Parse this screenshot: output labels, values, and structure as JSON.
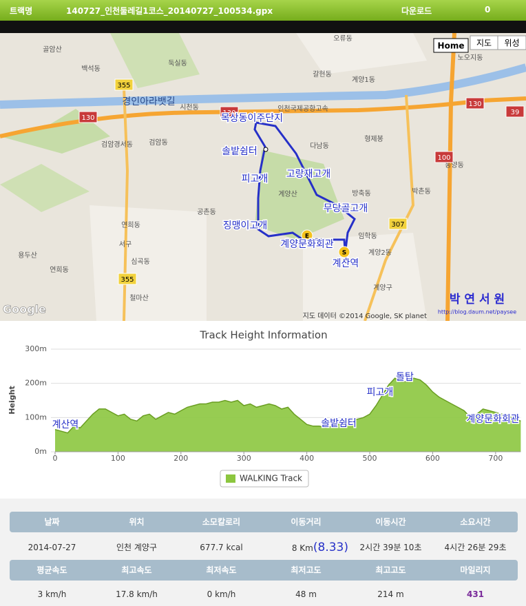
{
  "header": {
    "track_label": "트랙명",
    "track_name": "140727_인천둘레길1코스_20140727_100534.gpx",
    "download_label": "다운로드",
    "download_count": "0"
  },
  "map": {
    "buttons": [
      "Home",
      "지도",
      "위성"
    ],
    "route_labels": [
      "목상동이주단지",
      "솔밭쉼터",
      "고랑재고개",
      "피고개",
      "무당골고개",
      "징맹이고개",
      "계양문화회관",
      "계산역"
    ],
    "places": [
      "골암산",
      "백석동",
      "둑실동",
      "오류동",
      "갈현동",
      "계양1동",
      "노오지동",
      "시천동",
      "경인아라뱃길",
      "인천국제공항고속",
      "다남동",
      "형제봉",
      "검암경서동",
      "검암동",
      "계양산",
      "방축동",
      "박촌동",
      "동양동",
      "공촌동",
      "연희동",
      "서구",
      "임학동",
      "계양2동",
      "계양구",
      "용두산",
      "연희동",
      "심곡동",
      "철마산"
    ],
    "road_numbers": [
      "355",
      "130",
      "130",
      "307",
      "355",
      "130",
      "39",
      "100"
    ],
    "logo": "Google",
    "attribution": "지도 데이터 ©2014 Google, SK planet",
    "watermark": "박 연 서 원",
    "watermark_url": "http://blog.daum.net/paysee"
  },
  "chart_data": {
    "type": "area",
    "title": "Track Height Information",
    "y_label": "Height",
    "x": [
      0,
      10,
      20,
      30,
      40,
      50,
      60,
      70,
      80,
      90,
      100,
      110,
      120,
      130,
      140,
      150,
      160,
      170,
      180,
      190,
      200,
      210,
      220,
      230,
      240,
      250,
      260,
      270,
      280,
      290,
      300,
      310,
      320,
      330,
      340,
      350,
      360,
      370,
      380,
      390,
      400,
      410,
      420,
      430,
      440,
      450,
      460,
      470,
      480,
      490,
      500,
      510,
      520,
      530,
      540,
      550,
      560,
      570,
      580,
      590,
      600,
      610,
      620,
      630,
      640,
      650,
      660,
      670,
      680,
      690,
      700,
      710,
      720,
      730,
      740
    ],
    "series": [
      {
        "name": "WALKING Track",
        "color": "#8cc63f",
        "values": [
          65,
          60,
          55,
          75,
          70,
          90,
          110,
          125,
          125,
          115,
          105,
          110,
          95,
          90,
          105,
          110,
          95,
          105,
          115,
          110,
          120,
          130,
          135,
          140,
          140,
          145,
          145,
          150,
          145,
          150,
          135,
          140,
          130,
          135,
          140,
          135,
          125,
          130,
          110,
          95,
          80,
          75,
          75,
          70,
          75,
          80,
          85,
          90,
          95,
          100,
          110,
          135,
          165,
          195,
          215,
          205,
          205,
          215,
          210,
          195,
          175,
          160,
          150,
          140,
          130,
          120,
          100,
          110,
          125,
          120,
          115,
          110,
          105,
          95,
          90
        ]
      }
    ],
    "xlim": [
      0,
      740
    ],
    "ylim": [
      0,
      300
    ],
    "xticks": [
      0,
      100,
      200,
      300,
      400,
      500,
      600,
      700
    ],
    "yticks": [
      {
        "value": 0,
        "label": "0m"
      },
      {
        "value": 100,
        "label": "100m"
      },
      {
        "value": 200,
        "label": "200m"
      },
      {
        "value": 300,
        "label": "300m"
      }
    ],
    "annotations": [
      "계산역",
      "솔밭쉼터",
      "피고개",
      "돌탑",
      "계양문화회관"
    ]
  },
  "table": {
    "rows": [
      {
        "headers": [
          "날짜",
          "위치",
          "소모칼로리",
          "이동거리",
          "이동시간",
          "소요시간"
        ],
        "values": [
          "2014-07-27",
          "인천 계양구",
          "677.7 kcal",
          "8 Km",
          "2시간 39분 10초",
          "4시간 26분 29초"
        ]
      },
      {
        "headers": [
          "평균속도",
          "최고속도",
          "최저속도",
          "최저고도",
          "최고고도",
          "마일리지"
        ],
        "values": [
          "3 km/h",
          "17.8 km/h",
          "0 km/h",
          "48 m",
          "214 m",
          "431"
        ]
      }
    ],
    "distance_note": "(8.33)"
  }
}
